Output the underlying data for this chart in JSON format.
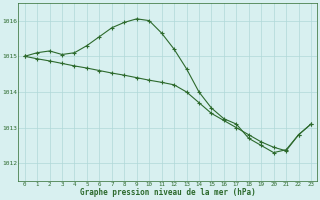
{
  "line1_x": [
    0,
    1,
    2,
    3,
    4,
    5,
    6,
    7,
    8,
    9,
    10,
    11,
    12,
    13,
    14,
    15,
    16,
    17,
    18,
    19,
    20,
    21,
    22,
    23
  ],
  "line1_y": [
    1015.0,
    1015.1,
    1015.15,
    1015.05,
    1015.1,
    1015.3,
    1015.55,
    1015.8,
    1015.95,
    1016.05,
    1016.0,
    1015.65,
    1015.2,
    1014.65,
    1014.0,
    1013.55,
    1013.25,
    1013.1,
    1012.7,
    1012.5,
    1012.3,
    1012.38,
    1012.8,
    1013.1
  ],
  "line2_x": [
    0,
    1,
    2,
    3,
    4,
    5,
    6,
    7,
    8,
    9,
    10,
    11,
    12,
    13,
    14,
    15,
    16,
    17,
    18,
    19,
    20,
    21,
    22,
    23
  ],
  "line2_y": [
    1015.0,
    1014.93,
    1014.87,
    1014.8,
    1014.73,
    1014.67,
    1014.6,
    1014.53,
    1014.47,
    1014.4,
    1014.33,
    1014.27,
    1014.2,
    1014.0,
    1013.7,
    1013.4,
    1013.2,
    1013.0,
    1012.8,
    1012.6,
    1012.45,
    1012.35,
    1012.8,
    1013.1
  ],
  "line_color": "#2d6a2d",
  "bg_color": "#d8f0f0",
  "grid_color": "#b0d8d8",
  "xlabel": "Graphe pression niveau de la mer (hPa)",
  "ylim": [
    1011.5,
    1016.5
  ],
  "xlim": [
    -0.5,
    23.5
  ],
  "yticks": [
    1012,
    1013,
    1014,
    1015,
    1016
  ],
  "xticks": [
    0,
    1,
    2,
    3,
    4,
    5,
    6,
    7,
    8,
    9,
    10,
    11,
    12,
    13,
    14,
    15,
    16,
    17,
    18,
    19,
    20,
    21,
    22,
    23
  ]
}
